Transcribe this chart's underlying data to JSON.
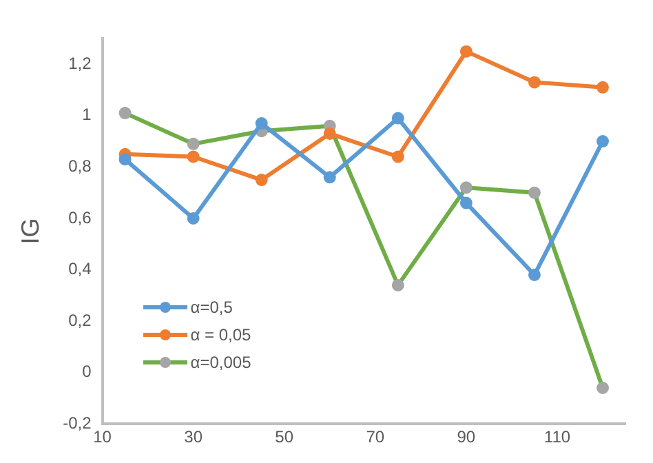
{
  "chart_data": {
    "type": "line",
    "ylabel": "IG",
    "x": [
      15,
      30,
      45,
      60,
      75,
      90,
      105,
      120
    ],
    "series": [
      {
        "name": "α=0,5",
        "color": "#5b9bd5",
        "values": [
          0.83,
          0.6,
          0.97,
          0.76,
          0.99,
          0.66,
          0.38,
          0.9
        ]
      },
      {
        "name": "α = 0,05",
        "color": "#ed7d31",
        "values": [
          0.85,
          0.84,
          0.75,
          0.93,
          0.84,
          1.25,
          1.13,
          1.11
        ]
      },
      {
        "name": "α=0,005",
        "color": "#70ad47",
        "colors": [
          "#a5a5a5",
          "#a5a5a5",
          "#a5a5a5",
          "#a5a5a5",
          "#a5a5a5",
          "#a5a5a5",
          "#a5a5a5",
          "#a5a5a5"
        ],
        "values": [
          1.01,
          0.89,
          0.94,
          0.96,
          0.34,
          0.72,
          0.7,
          -0.06
        ]
      }
    ],
    "xlim": [
      10,
      125
    ],
    "xticks": [
      10,
      30,
      50,
      70,
      90,
      110
    ],
    "ylim": [
      -0.2,
      1.3
    ],
    "yticks": [
      {
        "value": -0.2,
        "label": "-0,2"
      },
      0,
      {
        "value": 0.2,
        "label": "0,2"
      },
      {
        "value": 0.4,
        "label": "0,4"
      },
      {
        "value": 0.6,
        "label": "0,6"
      },
      {
        "value": 0.8,
        "label": "0,8"
      },
      1,
      {
        "value": 1.2,
        "label": "1,2"
      }
    ],
    "grid": false,
    "legend": "bottom left",
    "marker": "circle",
    "line_style": "solid"
  }
}
